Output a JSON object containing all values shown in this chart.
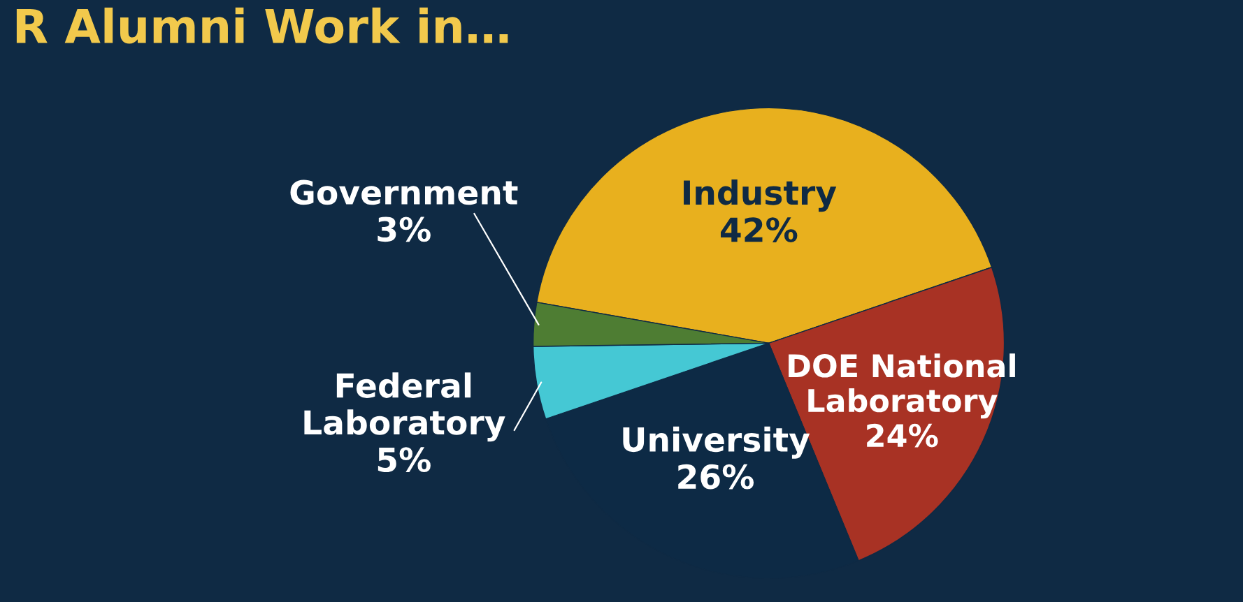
{
  "chart_data": {
    "type": "pie",
    "title": "R Alumni Work in…",
    "categories": [
      "Industry",
      "DOE National\nLaboratory",
      "University",
      "Federal\nLaboratory",
      "Government"
    ],
    "values": [
      42,
      24,
      26,
      5,
      3
    ],
    "value_labels": [
      "42%",
      "24%",
      "26%",
      "5%",
      "3%"
    ],
    "colors": [
      "#e8b01e",
      "#a83224",
      "#0d2a45",
      "#45c8d4",
      "#4e7d33"
    ]
  }
}
